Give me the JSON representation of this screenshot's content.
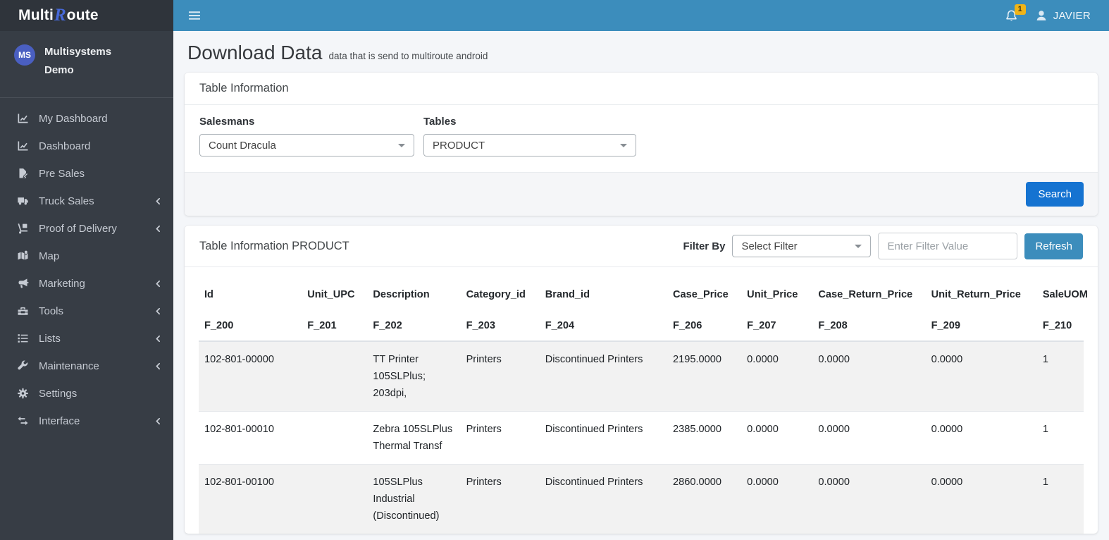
{
  "brand": {
    "prefix": "Multi",
    "r": "R",
    "suffix": "oute"
  },
  "topbar": {
    "notification_count": "1",
    "username": "JAVIER"
  },
  "sidebar": {
    "user": {
      "initials": "MS",
      "name": "Multisystems Demo"
    },
    "items": [
      {
        "label": "My Dashboard",
        "icon": "chart-line-icon",
        "has_submenu": false
      },
      {
        "label": "Dashboard",
        "icon": "chart-line-icon",
        "has_submenu": false
      },
      {
        "label": "Pre Sales",
        "icon": "file-signature-icon",
        "has_submenu": false
      },
      {
        "label": "Truck Sales",
        "icon": "truck-icon",
        "has_submenu": true
      },
      {
        "label": "Proof of Delivery",
        "icon": "truck-loading-icon",
        "has_submenu": true
      },
      {
        "label": "Map",
        "icon": "map-marked-icon",
        "has_submenu": false
      },
      {
        "label": "Marketing",
        "icon": "bullhorn-icon",
        "has_submenu": true
      },
      {
        "label": "Tools",
        "icon": "toolbox-icon",
        "has_submenu": true
      },
      {
        "label": "Lists",
        "icon": "list-icon",
        "has_submenu": true
      },
      {
        "label": "Maintenance",
        "icon": "wrench-icon",
        "has_submenu": true
      },
      {
        "label": "Settings",
        "icon": "gear-icon",
        "has_submenu": false
      },
      {
        "label": "Interface",
        "icon": "exchange-icon",
        "has_submenu": true
      }
    ]
  },
  "page": {
    "title": "Download Data",
    "subtitle": "data that is send to multiroute android"
  },
  "panel1": {
    "title": "Table Information",
    "salesmans_label": "Salesmans",
    "salesmans_value": "Count Dracula",
    "tables_label": "Tables",
    "tables_value": "PRODUCT",
    "search_label": "Search"
  },
  "panel2": {
    "title": "Table Information PRODUCT",
    "filter_by_label": "Filter By",
    "filter_select_value": "Select Filter",
    "filter_input_placeholder": "Enter Filter Value",
    "refresh_label": "Refresh"
  },
  "table": {
    "columns": [
      "Id",
      "Unit_UPC",
      "Description",
      "Category_id",
      "Brand_id",
      "Case_Price",
      "Unit_Price",
      "Case_Return_Price",
      "Unit_Return_Price",
      "SaleUOM"
    ],
    "fields": [
      "F_200",
      "F_201",
      "F_202",
      "F_203",
      "F_204",
      "F_206",
      "F_207",
      "F_208",
      "F_209",
      "F_210"
    ],
    "rows": [
      [
        "102-801-00000",
        "",
        "TT Printer 105SLPlus; 203dpi,",
        "Printers",
        "Discontinued Printers",
        "2195.0000",
        "0.0000",
        "0.0000",
        "0.0000",
        "1"
      ],
      [
        "102-801-00010",
        "",
        "Zebra 105SLPlus Thermal Transf",
        "Printers",
        "Discontinued Printers",
        "2385.0000",
        "0.0000",
        "0.0000",
        "0.0000",
        "1"
      ],
      [
        "102-801-00100",
        "",
        "105SLPlus Industrial (Discontinued)",
        "Printers",
        "Discontinued Printers",
        "2860.0000",
        "0.0000",
        "0.0000",
        "0.0000",
        "1"
      ]
    ]
  },
  "colors": {
    "topbar": "#3c8dbc",
    "sidebar": "#373d45",
    "sidebar_header": "#2f343b",
    "search_button": "#1573d1",
    "refresh_button": "#3c8dbc",
    "notification_badge": "#f0b417",
    "avatar": "#4a5fc1",
    "brand_r": "#4668d8",
    "row_stripe": "#f2f2f2"
  }
}
